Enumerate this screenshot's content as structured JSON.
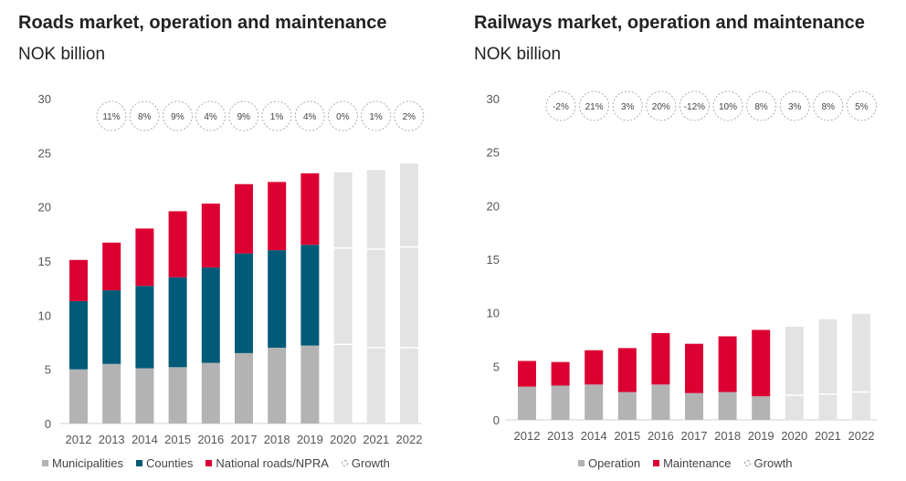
{
  "chart_data": [
    {
      "type": "bar",
      "stacked": true,
      "title": "Roads market, operation and maintenance",
      "subtitle": "NOK billion",
      "categories": [
        "2012",
        "2013",
        "2014",
        "2015",
        "2016",
        "2017",
        "2018",
        "2019",
        "2020",
        "2021",
        "2022"
      ],
      "ylim": [
        0,
        30
      ],
      "yticks": [
        "0",
        "5",
        "10",
        "15",
        "20",
        "25",
        "30"
      ],
      "growth_labels": [
        "11%",
        "8%",
        "9%",
        "4%",
        "9%",
        "1%",
        "4%",
        "0%",
        "1%",
        "2%"
      ],
      "series": [
        {
          "name": "Municipalities",
          "color": "#b3b3b3",
          "values": [
            5.0,
            5.5,
            5.1,
            5.2,
            5.6,
            6.5,
            7.0,
            7.2,
            null,
            null,
            null
          ]
        },
        {
          "name": "Counties",
          "color": "#005a78",
          "values": [
            6.3,
            6.8,
            7.6,
            8.3,
            8.8,
            9.2,
            9.0,
            9.3,
            null,
            null,
            null
          ]
        },
        {
          "name": "National roads/NPRA",
          "color": "#dc0032",
          "values": [
            3.8,
            4.4,
            5.3,
            6.1,
            5.9,
            6.4,
            6.3,
            6.6,
            null,
            null,
            null
          ]
        }
      ],
      "growth_series": {
        "name": "Growth",
        "color": "#e3e3e3",
        "totals": [
          null,
          null,
          null,
          null,
          null,
          null,
          null,
          null,
          23.2,
          23.4,
          24.0
        ],
        "dividers": [
          [],
          [],
          [],
          [],
          [],
          [],
          [],
          [],
          [
            7.3,
            16.2
          ],
          [
            7.0,
            16.1
          ],
          [
            7.0,
            16.3
          ]
        ]
      },
      "legend": [
        "Municipalities",
        "Counties",
        "National roads/NPRA",
        "Growth"
      ]
    },
    {
      "type": "bar",
      "stacked": true,
      "title": "Railways market, operation and maintenance",
      "subtitle": "NOK billion",
      "categories": [
        "2012",
        "2013",
        "2014",
        "2015",
        "2016",
        "2017",
        "2018",
        "2019",
        "2020",
        "2021",
        "2022"
      ],
      "ylim": [
        0,
        30
      ],
      "yticks": [
        "0",
        "5",
        "10",
        "15",
        "20",
        "25",
        "30"
      ],
      "growth_labels": [
        "-2%",
        "21%",
        "3%",
        "20%",
        "-12%",
        "10%",
        "8%",
        "3%",
        "8%",
        "5%"
      ],
      "series": [
        {
          "name": "Operation",
          "color": "#b3b3b3",
          "values": [
            3.1,
            3.2,
            3.3,
            2.6,
            3.3,
            2.5,
            2.6,
            2.2,
            null,
            null,
            null
          ]
        },
        {
          "name": "Maintenance",
          "color": "#dc0032",
          "values": [
            2.4,
            2.2,
            3.2,
            4.1,
            4.8,
            4.6,
            5.2,
            6.2,
            null,
            null,
            null
          ]
        }
      ],
      "growth_series": {
        "name": "Growth",
        "color": "#e3e3e3",
        "totals": [
          null,
          null,
          null,
          null,
          null,
          null,
          null,
          null,
          8.7,
          9.4,
          9.9
        ],
        "dividers": [
          [],
          [],
          [],
          [],
          [],
          [],
          [],
          [],
          [
            2.3
          ],
          [
            2.4
          ],
          [
            2.6
          ]
        ]
      },
      "legend": [
        "Operation",
        "Maintenance",
        "Growth"
      ]
    }
  ]
}
